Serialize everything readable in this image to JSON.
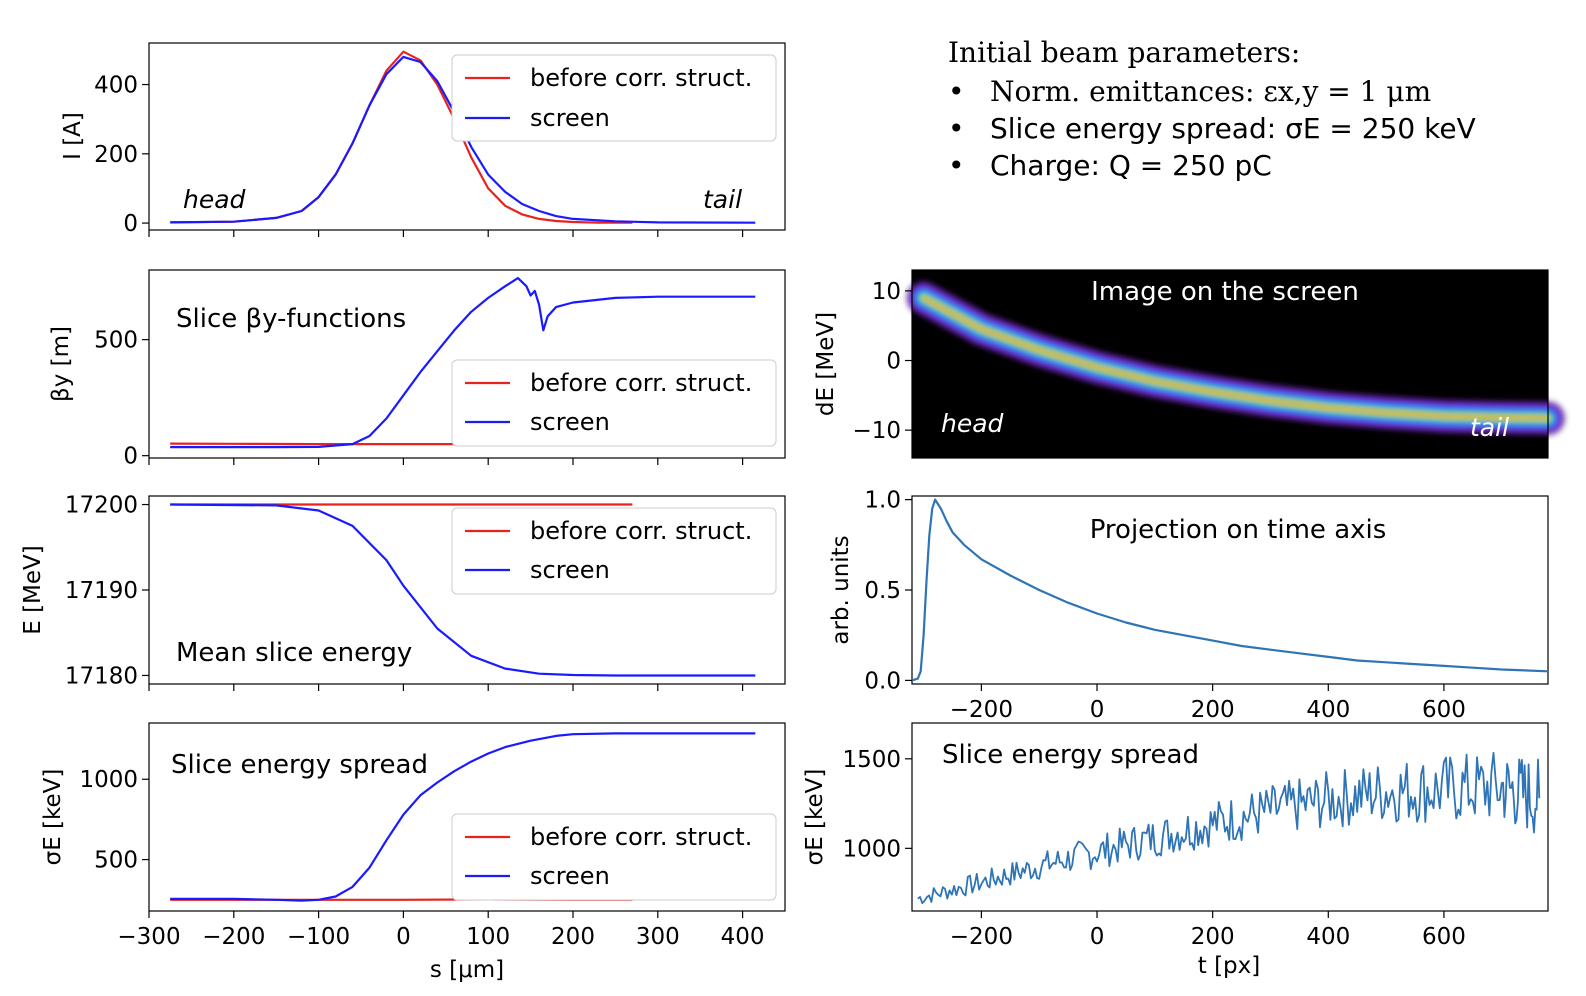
{
  "initial_params": {
    "title": "Initial beam parameters:",
    "items": [
      {
        "label": "Norm. emittances:",
        "value": "εx,y = 1 μm"
      },
      {
        "label": "Slice energy spread:",
        "value": "σE = 250 keV"
      },
      {
        "label": "Charge:",
        "value": "Q = 250 pC"
      }
    ]
  },
  "colors": {
    "before": "#e8231f",
    "screen": "#1a1aff",
    "meas": "#2f74b5"
  },
  "chart_data": [
    {
      "id": "current",
      "type": "line",
      "ylabel": "I [A]",
      "xlim": [
        -300,
        450
      ],
      "ylim": [
        -20,
        520
      ],
      "yticks": [
        0,
        200,
        400
      ],
      "annotations": {
        "head": "head",
        "tail": "tail"
      },
      "legend": [
        "before corr. struct.",
        "screen"
      ],
      "series": [
        {
          "name": "before corr. struct.",
          "x": [
            -275,
            -200,
            -150,
            -120,
            -100,
            -80,
            -60,
            -40,
            -20,
            0,
            20,
            40,
            60,
            80,
            100,
            120,
            140,
            160,
            180,
            200,
            230,
            270
          ],
          "y": [
            2,
            4,
            15,
            35,
            75,
            140,
            230,
            340,
            440,
            495,
            470,
            400,
            300,
            190,
            100,
            50,
            25,
            12,
            6,
            3,
            1,
            1
          ]
        },
        {
          "name": "screen",
          "x": [
            -275,
            -200,
            -150,
            -120,
            -100,
            -80,
            -60,
            -40,
            -20,
            0,
            20,
            40,
            60,
            80,
            100,
            120,
            140,
            160,
            180,
            200,
            250,
            300,
            415
          ],
          "y": [
            2,
            4,
            15,
            35,
            75,
            140,
            230,
            340,
            430,
            480,
            465,
            410,
            320,
            220,
            140,
            90,
            55,
            35,
            20,
            12,
            5,
            2,
            1
          ]
        }
      ]
    },
    {
      "id": "beta",
      "type": "line",
      "ylabel": "βy [m]",
      "title": "Slice βy-functions",
      "xlim": [
        -300,
        450
      ],
      "ylim": [
        -10,
        800
      ],
      "yticks": [
        0,
        500
      ],
      "legend": [
        "before corr. struct.",
        "screen"
      ],
      "series": [
        {
          "name": "before corr. struct.",
          "x": [
            -275,
            -200,
            -100,
            0,
            100,
            200,
            270
          ],
          "y": [
            52,
            51,
            50,
            50,
            50,
            49,
            49
          ]
        },
        {
          "name": "screen",
          "x": [
            -275,
            -150,
            -100,
            -60,
            -40,
            -20,
            0,
            20,
            40,
            60,
            80,
            100,
            120,
            135,
            145,
            150,
            155,
            160,
            165,
            170,
            180,
            200,
            250,
            300,
            350,
            415
          ],
          "y": [
            37,
            37,
            38,
            50,
            85,
            160,
            260,
            360,
            450,
            540,
            620,
            680,
            730,
            765,
            730,
            690,
            710,
            650,
            540,
            600,
            640,
            660,
            680,
            685,
            685,
            685
          ]
        }
      ]
    },
    {
      "id": "energy",
      "type": "line",
      "ylabel": "E [MeV]",
      "title": "Mean slice energy",
      "xlim": [
        -300,
        450
      ],
      "ylim": [
        17179,
        17201
      ],
      "yticks": [
        17180,
        17190,
        17200
      ],
      "legend": [
        "before corr. struct.",
        "screen"
      ],
      "series": [
        {
          "name": "before corr. struct.",
          "x": [
            -275,
            270
          ],
          "y": [
            17200,
            17200
          ]
        },
        {
          "name": "screen",
          "x": [
            -275,
            -150,
            -100,
            -60,
            -20,
            0,
            40,
            80,
            120,
            160,
            200,
            250,
            300,
            415
          ],
          "y": [
            17200,
            17199.9,
            17199.3,
            17197.5,
            17193.5,
            17190.5,
            17185.5,
            17182.3,
            17180.8,
            17180.2,
            17180.05,
            17180,
            17180,
            17180
          ]
        }
      ]
    },
    {
      "id": "espread",
      "type": "line",
      "ylabel": "σE [keV]",
      "title": "Slice energy spread",
      "xlabel": "s [μm]",
      "xlim": [
        -300,
        450
      ],
      "xticks": [
        -300,
        -200,
        -100,
        0,
        100,
        200,
        300,
        400
      ],
      "ylim": [
        180,
        1350
      ],
      "yticks": [
        500,
        1000
      ],
      "legend": [
        "before corr. struct.",
        "screen"
      ],
      "series": [
        {
          "name": "before corr. struct.",
          "x": [
            -275,
            -150,
            -100,
            0,
            100,
            200,
            270
          ],
          "y": [
            250,
            250,
            250,
            250,
            252,
            250,
            250
          ]
        },
        {
          "name": "screen",
          "x": [
            -275,
            -200,
            -150,
            -120,
            -100,
            -80,
            -60,
            -40,
            -20,
            0,
            20,
            40,
            60,
            80,
            100,
            120,
            150,
            180,
            200,
            250,
            300,
            415
          ],
          "y": [
            255,
            255,
            250,
            245,
            250,
            270,
            330,
            450,
            620,
            780,
            900,
            980,
            1050,
            1110,
            1160,
            1200,
            1240,
            1270,
            1280,
            1285,
            1285,
            1285
          ]
        }
      ]
    },
    {
      "id": "screen_image",
      "type": "heatmap",
      "title": "Image on the screen",
      "ylabel": "dE [MeV]",
      "xlim": [
        -320,
        780
      ],
      "ylim": [
        -14,
        13
      ],
      "yticks": [
        -10,
        0,
        10
      ],
      "annotations": {
        "head": "head",
        "tail": "tail"
      },
      "centroid": {
        "t": [
          -300,
          -200,
          -100,
          0,
          100,
          200,
          300,
          400,
          500,
          600,
          700,
          780
        ],
        "dE": [
          9,
          4.5,
          1.5,
          -1,
          -3,
          -4.5,
          -5.8,
          -6.8,
          -7.5,
          -8,
          -8.2,
          -8.3
        ]
      }
    },
    {
      "id": "projection",
      "type": "line",
      "title": "Projection on time axis",
      "ylabel": "arb. units",
      "xlim": [
        -320,
        780
      ],
      "ylim": [
        -0.02,
        1.02
      ],
      "yticks": [
        0.0,
        0.5,
        1.0
      ],
      "xticks": [
        -200,
        0,
        200,
        400,
        600
      ],
      "series": [
        {
          "name": "projection",
          "x": [
            -320,
            -310,
            -305,
            -300,
            -295,
            -290,
            -285,
            -280,
            -270,
            -260,
            -250,
            -230,
            -200,
            -150,
            -100,
            -50,
            0,
            50,
            100,
            150,
            200,
            250,
            300,
            350,
            400,
            450,
            500,
            550,
            600,
            650,
            700,
            780
          ],
          "y": [
            0,
            0.01,
            0.05,
            0.25,
            0.55,
            0.8,
            0.95,
            1.0,
            0.95,
            0.88,
            0.82,
            0.75,
            0.67,
            0.58,
            0.5,
            0.43,
            0.37,
            0.32,
            0.28,
            0.25,
            0.22,
            0.19,
            0.17,
            0.15,
            0.13,
            0.11,
            0.1,
            0.09,
            0.08,
            0.07,
            0.06,
            0.05
          ]
        }
      ]
    },
    {
      "id": "meas_espread",
      "type": "line",
      "title": "Slice energy spread",
      "ylabel": "σE [keV]",
      "xlabel": "t [px]",
      "xlim": [
        -320,
        780
      ],
      "ylim": [
        650,
        1700
      ],
      "yticks": [
        1000,
        1500
      ],
      "xticks": [
        -200,
        0,
        200,
        400,
        600
      ],
      "series": [
        {
          "name": "slice energy spread",
          "x": [
            -310,
            -200,
            -100,
            0,
            100,
            200,
            300,
            400,
            500,
            600,
            700,
            765
          ],
          "y": [
            720,
            810,
            900,
            980,
            1060,
            1140,
            1210,
            1270,
            1320,
            1330,
            1340,
            1280
          ]
        }
      ]
    }
  ]
}
